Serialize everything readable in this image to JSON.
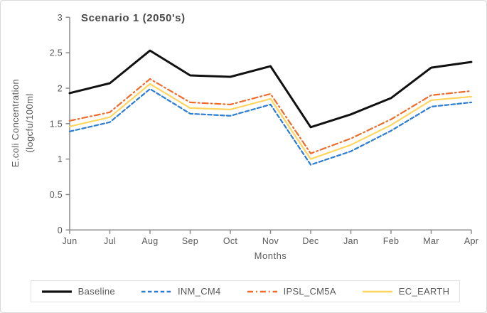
{
  "window": {
    "background": "#ffffff",
    "border_color": "#d9d9d9"
  },
  "axis_style": {
    "text_color": "#595959",
    "line_color": "#8c8c8c",
    "title_color": "#474747"
  },
  "chart_data": {
    "type": "line",
    "title": "Scenario 1 (2050's)",
    "xlabel": "Months",
    "ylabel_line1": "E.coli Concentration",
    "ylabel_line2": "(logcfu/100ml",
    "categories": [
      "Jun",
      "Jul",
      "Aug",
      "Sep",
      "Oct",
      "Nov",
      "Dec",
      "Jan",
      "Feb",
      "Mar",
      "Apr"
    ],
    "ylim": [
      0,
      3
    ],
    "yticks": [
      "0",
      "0.5",
      "1",
      "1.5",
      "2",
      "2.5",
      "3"
    ],
    "grid": false,
    "legend_position": "bottom",
    "series": [
      {
        "name": "Baseline",
        "color": "#111111",
        "style": "solid",
        "width": 3,
        "values": [
          1.93,
          2.07,
          2.53,
          2.18,
          2.16,
          2.31,
          1.45,
          1.63,
          1.86,
          2.29,
          2.37
        ]
      },
      {
        "name": "INM_CM4",
        "color": "#2b7cd3",
        "style": "dashed",
        "width": 2.2,
        "values": [
          1.39,
          1.52,
          1.99,
          1.64,
          1.61,
          1.77,
          0.92,
          1.11,
          1.4,
          1.74,
          1.8
        ]
      },
      {
        "name": "IPSL_CM5A",
        "color": "#ed6c2b",
        "style": "dashdot",
        "width": 2.2,
        "values": [
          1.54,
          1.66,
          2.13,
          1.8,
          1.77,
          1.92,
          1.08,
          1.29,
          1.56,
          1.9,
          1.96
        ]
      },
      {
        "name": "EC_EARTH",
        "color": "#ffd55f",
        "style": "solid",
        "width": 2.2,
        "values": [
          1.46,
          1.59,
          2.06,
          1.72,
          1.7,
          1.85,
          1.0,
          1.2,
          1.48,
          1.83,
          1.88
        ]
      }
    ]
  }
}
